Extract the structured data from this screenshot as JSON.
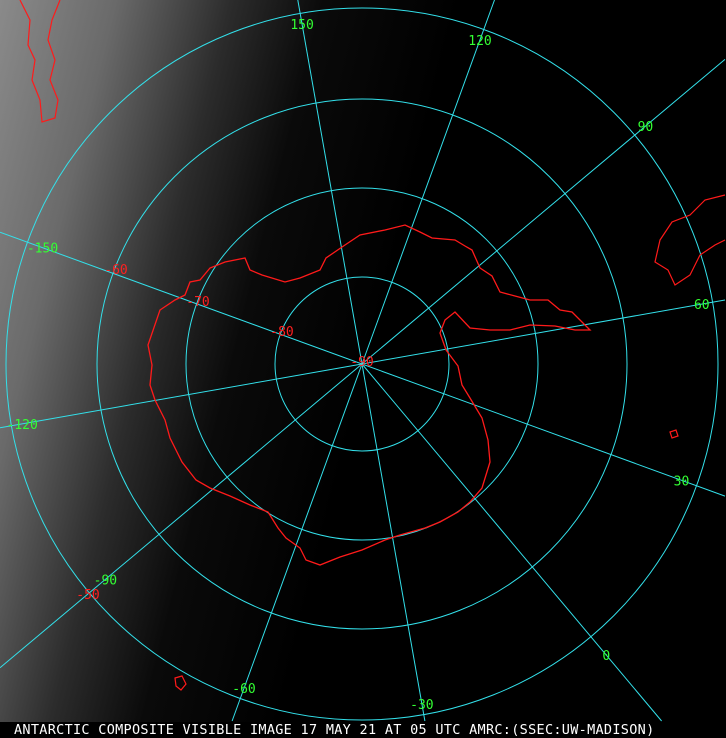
{
  "caption": "ANTARCTIC COMPOSITE VISIBLE IMAGE 17 MAY 21 AT 05 UTC AMRC:(SSEC:UW-MADISON)",
  "colors": {
    "grid": "#33e0ea",
    "coast": "#ff1a1a",
    "lon_label": "#33ff33",
    "lat_label": "#ff2020"
  },
  "latitude_labels": [
    "-90",
    "-80",
    "-70",
    "-60",
    "-50"
  ],
  "longitude_labels": [
    "150",
    "120",
    "90",
    "60",
    "30",
    "0",
    "-30",
    "-60",
    "-90",
    "-120",
    "-150"
  ]
}
